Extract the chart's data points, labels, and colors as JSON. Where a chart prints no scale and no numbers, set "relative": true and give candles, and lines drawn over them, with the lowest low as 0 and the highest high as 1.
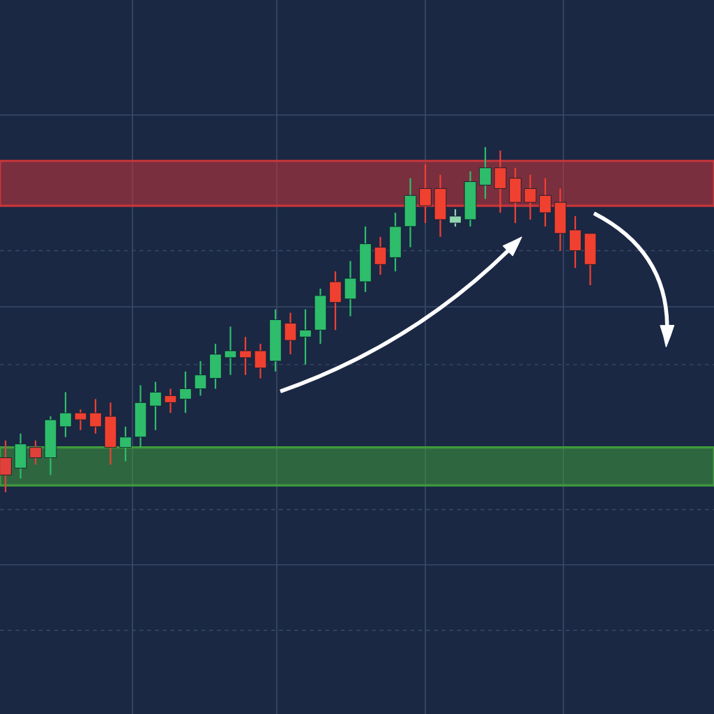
{
  "chart_data": {
    "type": "candlestick",
    "relative": true,
    "categories": [
      null,
      null,
      null,
      null,
      null,
      null,
      null,
      null,
      null,
      null,
      null,
      null,
      null,
      null,
      null,
      null,
      null,
      null,
      null,
      null,
      null,
      null,
      null,
      null,
      null,
      null,
      null,
      null,
      null,
      null,
      null,
      null,
      null,
      null,
      null,
      null,
      null,
      null,
      null,
      null
    ],
    "ohlc": [
      [
        0.1,
        0.15,
        0.0,
        0.05
      ],
      [
        0.07,
        0.17,
        0.04,
        0.14
      ],
      [
        0.13,
        0.15,
        0.08,
        0.1
      ],
      [
        0.1,
        0.22,
        0.05,
        0.21
      ],
      [
        0.19,
        0.29,
        0.16,
        0.23
      ],
      [
        0.23,
        0.24,
        0.18,
        0.21
      ],
      [
        0.23,
        0.27,
        0.17,
        0.19
      ],
      [
        0.22,
        0.26,
        0.08,
        0.13
      ],
      [
        0.13,
        0.19,
        0.09,
        0.16
      ],
      [
        0.16,
        0.31,
        0.13,
        0.26
      ],
      [
        0.25,
        0.32,
        0.18,
        0.29
      ],
      [
        0.28,
        0.3,
        0.23,
        0.26
      ],
      [
        0.27,
        0.35,
        0.23,
        0.3
      ],
      [
        0.3,
        0.38,
        0.28,
        0.34
      ],
      [
        0.33,
        0.43,
        0.3,
        0.4
      ],
      [
        0.39,
        0.48,
        0.34,
        0.41
      ],
      [
        0.41,
        0.45,
        0.34,
        0.39
      ],
      [
        0.41,
        0.43,
        0.33,
        0.36
      ],
      [
        0.38,
        0.53,
        0.35,
        0.5
      ],
      [
        0.49,
        0.52,
        0.4,
        0.44
      ],
      [
        0.45,
        0.53,
        0.37,
        0.47
      ],
      [
        0.47,
        0.59,
        0.43,
        0.57
      ],
      [
        0.61,
        0.64,
        0.47,
        0.55
      ],
      [
        0.56,
        0.67,
        0.51,
        0.62
      ],
      [
        0.61,
        0.77,
        0.58,
        0.72
      ],
      [
        0.71,
        0.74,
        0.63,
        0.66
      ],
      [
        0.68,
        0.81,
        0.64,
        0.77
      ],
      [
        0.77,
        0.91,
        0.71,
        0.86
      ],
      [
        0.88,
        0.95,
        0.78,
        0.83
      ],
      [
        0.88,
        0.92,
        0.74,
        0.79
      ],
      [
        0.78,
        0.82,
        0.77,
        0.8
      ],
      [
        0.79,
        0.93,
        0.77,
        0.9
      ],
      [
        0.89,
        1.0,
        0.85,
        0.94
      ],
      [
        0.94,
        0.99,
        0.81,
        0.88
      ],
      [
        0.91,
        0.94,
        0.78,
        0.84
      ],
      [
        0.88,
        0.92,
        0.79,
        0.84
      ],
      [
        0.86,
        0.91,
        0.77,
        0.81
      ],
      [
        0.84,
        0.88,
        0.7,
        0.75
      ],
      [
        0.76,
        0.8,
        0.65,
        0.7
      ],
      [
        0.75,
        0.75,
        0.6,
        0.66
      ]
    ],
    "colors": [
      "#e0413a",
      "#2ebd6b",
      "#e0413a",
      "#2ebd6b",
      "#2ebd6b",
      "#f04030",
      "#f04030",
      "#f04030",
      "#2ebd6b",
      "#2ebd6b",
      "#2ebd6b",
      "#f04030",
      "#2ebd6b",
      "#2ebd6b",
      "#2ebd6b",
      "#2ebd6b",
      "#f04030",
      "#f04030",
      "#2ebd6b",
      "#f04030",
      "#2ebd6b",
      "#2ebd6b",
      "#f04030",
      "#2ebd6b",
      "#2ebd6b",
      "#f04030",
      "#2ebd6b",
      "#2ebd6b",
      "#f04030",
      "#f04030",
      "#8fd6b0",
      "#2ebd6b",
      "#2ebd6b",
      "#f04030",
      "#f04030",
      "#f04030",
      "#f04030",
      "#f04030",
      "#f04030",
      "#f04030"
    ],
    "bands": [
      {
        "axis": "y",
        "from": 0.83,
        "to": 0.96,
        "color": "#c8353a"
      },
      {
        "axis": "y",
        "from": 0.02,
        "to": 0.13,
        "color": "#3f9a3c"
      }
    ],
    "ref_lines": [
      {
        "axis": "y",
        "value": 0.7,
        "line_style": "dashed",
        "color": "#3a4a66"
      },
      {
        "axis": "y",
        "value": 0.37,
        "line_style": "dashed",
        "color": "#3a4a66"
      },
      {
        "axis": "y",
        "value": -0.05,
        "line_style": "dashed",
        "color": "#3a4a66"
      },
      {
        "axis": "y",
        "value": -0.4,
        "line_style": "dashed",
        "color": "#3a4a66"
      }
    ],
    "grid": true
  }
}
